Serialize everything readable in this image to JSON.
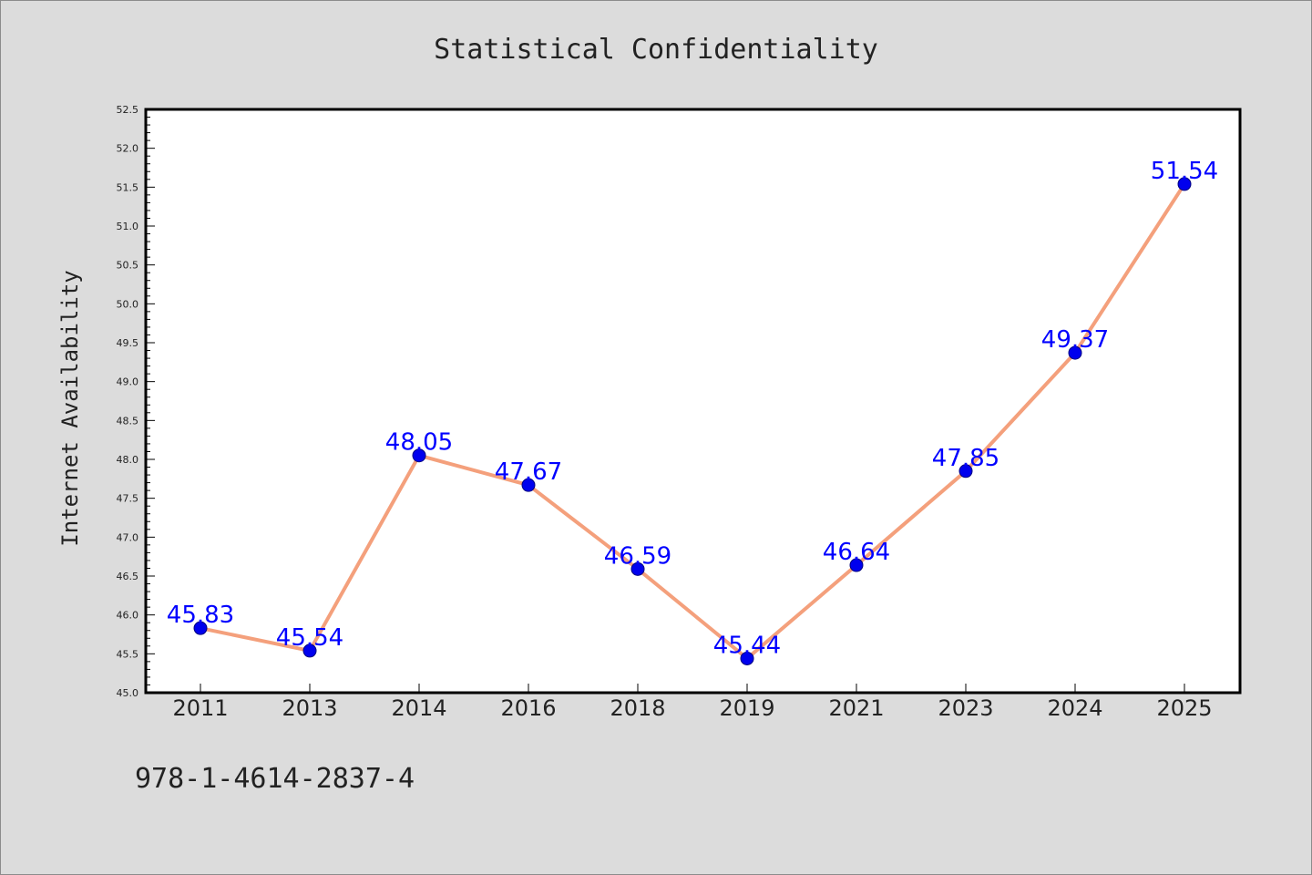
{
  "chart_data": {
    "type": "line",
    "title": "Statistical Confidentiality",
    "xlabel": "",
    "ylabel": "Internet Availability",
    "categories": [
      "2011",
      "2013",
      "2014",
      "2016",
      "2018",
      "2019",
      "2021",
      "2023",
      "2024",
      "2025"
    ],
    "series": [
      {
        "values": [
          45.83,
          45.54,
          48.05,
          47.67,
          46.59,
          45.44,
          46.64,
          47.85,
          49.37,
          51.54
        ],
        "data_labels": [
          "45.83",
          "45.54",
          "48.05",
          "47.67",
          "46.59",
          "45.44",
          "46.64",
          "47.85",
          "49.37",
          "51.54"
        ],
        "line_color": "#f4a07c",
        "marker_color": "#0000ee",
        "label_color": "#0000ff"
      }
    ],
    "ylim": [
      45.0,
      52.5
    ],
    "yticks": [
      "45.0",
      "45.5",
      "46.0",
      "46.5",
      "47.0",
      "47.5",
      "48.0",
      "48.5",
      "49.0",
      "49.5",
      "50.0",
      "50.5",
      "51.0",
      "51.5",
      "52.0",
      "52.5"
    ],
    "grid": false,
    "legend": "none"
  },
  "footer_text": "978-1-4614-2837-4",
  "colors": {
    "background": "#dcdcdc",
    "plot_background": "#ffffff"
  }
}
